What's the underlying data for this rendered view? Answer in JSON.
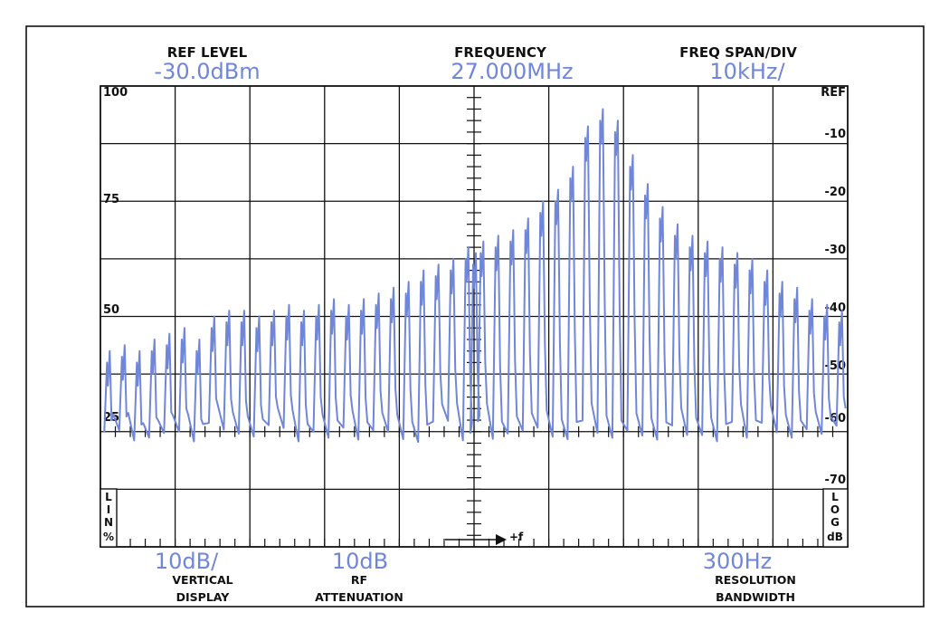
{
  "header": {
    "ref_level_label": "REF LEVEL",
    "ref_level_value": "-30.0dBm",
    "frequency_label": "FREQUENCY",
    "frequency_value": "27.000MHz",
    "span_label": "FREQ SPAN/DIV",
    "span_value": "10kHz/"
  },
  "footer": {
    "vertical_value": "10dB/",
    "vertical_label_1": "VERTICAL",
    "vertical_label_2": "DISPLAY",
    "rf_value": "10dB",
    "rf_label_1": "RF",
    "rf_label_2": "ATTENUATION",
    "rbw_value": "300Hz",
    "rbw_label_1": "RESOLUTION",
    "rbw_label_2": "BANDWIDTH"
  },
  "left_scale": {
    "labels": [
      "100",
      "75",
      "50",
      "25"
    ]
  },
  "right_scale": {
    "labels": [
      "REF",
      "-10",
      "-20",
      "-30",
      "-40",
      "-50",
      "-60",
      "-70"
    ]
  },
  "left_mode": {
    "chars": [
      "L",
      "I",
      "N",
      "%"
    ]
  },
  "right_mode": {
    "chars": [
      "L",
      "O",
      "G",
      "dB"
    ]
  },
  "marker_label": "+f",
  "colors": {
    "trace": "#6f86d9",
    "grid": "#111111",
    "value_text": "#6f86d9"
  },
  "chart_data": {
    "type": "line",
    "description_free": true,
    "x_span_divisions": 10,
    "x_center_mhz": 27.0,
    "x_span_per_div_khz": 10,
    "ylim_db": [
      -80,
      0
    ],
    "ref_level_dbm": -30.0,
    "peaks": {
      "offset_khz": [
        -49,
        -47,
        -45,
        -43,
        -41,
        -39,
        -37,
        -35,
        -33,
        -31,
        -29,
        -27,
        -25,
        -23,
        -21,
        -19,
        -17,
        -15,
        -13,
        -11,
        -9,
        -7,
        -5,
        -3,
        -1,
        0,
        1,
        3,
        5,
        7,
        9,
        11,
        13,
        15,
        17,
        19,
        21,
        23,
        25,
        27,
        29,
        31,
        33,
        35,
        37,
        39,
        41,
        43,
        45,
        47,
        49
      ],
      "level_db": [
        -52,
        -51,
        -52,
        -50,
        -49,
        -48,
        -50,
        -46,
        -45,
        -45,
        -46,
        -45,
        -44,
        -45,
        -44,
        -43,
        -44,
        -43,
        -42,
        -41,
        -40,
        -38,
        -37,
        -36,
        -34,
        -35,
        -33,
        -32,
        -31,
        -29,
        -26,
        -24,
        -20,
        -13,
        -10,
        -12,
        -18,
        -23,
        -27,
        -30,
        -32,
        -33,
        -34,
        -35,
        -36,
        -38,
        -40,
        -41,
        -43,
        -44,
        -45
      ]
    },
    "baseline_db_min": -62,
    "baseline_db_max": -58
  }
}
